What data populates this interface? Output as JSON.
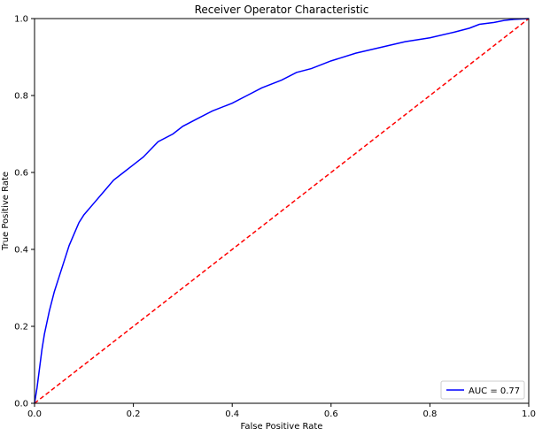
{
  "chart_data": {
    "type": "line",
    "title": "Receiver Operator Characteristic",
    "xlabel": "False Positive Rate",
    "ylabel": "True Positive Rate",
    "xlim": [
      0,
      1
    ],
    "ylim": [
      0,
      1
    ],
    "x_ticks": [
      "0.0",
      "0.2",
      "0.4",
      "0.6",
      "0.8",
      "1.0"
    ],
    "y_ticks": [
      "0.0",
      "0.2",
      "0.4",
      "0.6",
      "0.8",
      "1.0"
    ],
    "grid": false,
    "legend_position": "lower-right",
    "series": [
      {
        "name": "AUC = 0.77",
        "color": "#0000ff",
        "style": "solid",
        "x": [
          0.0,
          0.005,
          0.01,
          0.015,
          0.02,
          0.025,
          0.03,
          0.04,
          0.05,
          0.06,
          0.07,
          0.08,
          0.09,
          0.1,
          0.12,
          0.14,
          0.16,
          0.18,
          0.2,
          0.22,
          0.25,
          0.28,
          0.3,
          0.33,
          0.36,
          0.4,
          0.43,
          0.46,
          0.5,
          0.53,
          0.56,
          0.6,
          0.65,
          0.7,
          0.75,
          0.8,
          0.85,
          0.88,
          0.9,
          0.93,
          0.95,
          0.97,
          1.0
        ],
        "y": [
          0.0,
          0.04,
          0.09,
          0.14,
          0.18,
          0.21,
          0.24,
          0.29,
          0.33,
          0.37,
          0.41,
          0.44,
          0.47,
          0.49,
          0.52,
          0.55,
          0.58,
          0.6,
          0.62,
          0.64,
          0.68,
          0.7,
          0.72,
          0.74,
          0.76,
          0.78,
          0.8,
          0.82,
          0.84,
          0.86,
          0.87,
          0.89,
          0.91,
          0.925,
          0.94,
          0.95,
          0.965,
          0.975,
          0.985,
          0.99,
          0.995,
          0.998,
          1.0
        ]
      },
      {
        "name": "",
        "color": "#ff0000",
        "style": "dashed",
        "x": [
          0,
          1
        ],
        "y": [
          0,
          1
        ]
      }
    ]
  }
}
